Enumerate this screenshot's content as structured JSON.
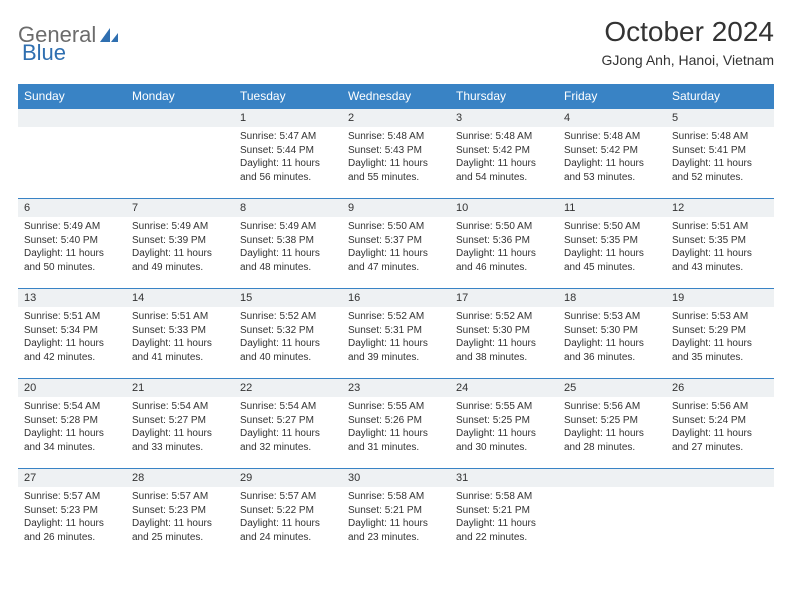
{
  "colors": {
    "header_bg": "#3983c5",
    "header_text": "#ffffff",
    "daynum_bg": "#eef1f3",
    "border": "#3983c5",
    "body_text": "#333333",
    "logo_gray": "#6c6c6c",
    "logo_blue": "#2f6fb0",
    "page_bg": "#ffffff"
  },
  "logo": {
    "part1": "General",
    "part2": "Blue"
  },
  "title": "October 2024",
  "location": "GJong Anh, Hanoi, Vietnam",
  "weekdays": [
    "Sunday",
    "Monday",
    "Tuesday",
    "Wednesday",
    "Thursday",
    "Friday",
    "Saturday"
  ],
  "font": {
    "title_size": 28,
    "location_size": 14,
    "th_size": 12,
    "cell_size": 10
  },
  "weeks": [
    [
      {
        "blank": true
      },
      {
        "blank": true
      },
      {
        "day": "1",
        "sunrise": "Sunrise: 5:47 AM",
        "sunset": "Sunset: 5:44 PM",
        "daylight": "Daylight: 11 hours and 56 minutes."
      },
      {
        "day": "2",
        "sunrise": "Sunrise: 5:48 AM",
        "sunset": "Sunset: 5:43 PM",
        "daylight": "Daylight: 11 hours and 55 minutes."
      },
      {
        "day": "3",
        "sunrise": "Sunrise: 5:48 AM",
        "sunset": "Sunset: 5:42 PM",
        "daylight": "Daylight: 11 hours and 54 minutes."
      },
      {
        "day": "4",
        "sunrise": "Sunrise: 5:48 AM",
        "sunset": "Sunset: 5:42 PM",
        "daylight": "Daylight: 11 hours and 53 minutes."
      },
      {
        "day": "5",
        "sunrise": "Sunrise: 5:48 AM",
        "sunset": "Sunset: 5:41 PM",
        "daylight": "Daylight: 11 hours and 52 minutes."
      }
    ],
    [
      {
        "day": "6",
        "sunrise": "Sunrise: 5:49 AM",
        "sunset": "Sunset: 5:40 PM",
        "daylight": "Daylight: 11 hours and 50 minutes."
      },
      {
        "day": "7",
        "sunrise": "Sunrise: 5:49 AM",
        "sunset": "Sunset: 5:39 PM",
        "daylight": "Daylight: 11 hours and 49 minutes."
      },
      {
        "day": "8",
        "sunrise": "Sunrise: 5:49 AM",
        "sunset": "Sunset: 5:38 PM",
        "daylight": "Daylight: 11 hours and 48 minutes."
      },
      {
        "day": "9",
        "sunrise": "Sunrise: 5:50 AM",
        "sunset": "Sunset: 5:37 PM",
        "daylight": "Daylight: 11 hours and 47 minutes."
      },
      {
        "day": "10",
        "sunrise": "Sunrise: 5:50 AM",
        "sunset": "Sunset: 5:36 PM",
        "daylight": "Daylight: 11 hours and 46 minutes."
      },
      {
        "day": "11",
        "sunrise": "Sunrise: 5:50 AM",
        "sunset": "Sunset: 5:35 PM",
        "daylight": "Daylight: 11 hours and 45 minutes."
      },
      {
        "day": "12",
        "sunrise": "Sunrise: 5:51 AM",
        "sunset": "Sunset: 5:35 PM",
        "daylight": "Daylight: 11 hours and 43 minutes."
      }
    ],
    [
      {
        "day": "13",
        "sunrise": "Sunrise: 5:51 AM",
        "sunset": "Sunset: 5:34 PM",
        "daylight": "Daylight: 11 hours and 42 minutes."
      },
      {
        "day": "14",
        "sunrise": "Sunrise: 5:51 AM",
        "sunset": "Sunset: 5:33 PM",
        "daylight": "Daylight: 11 hours and 41 minutes."
      },
      {
        "day": "15",
        "sunrise": "Sunrise: 5:52 AM",
        "sunset": "Sunset: 5:32 PM",
        "daylight": "Daylight: 11 hours and 40 minutes."
      },
      {
        "day": "16",
        "sunrise": "Sunrise: 5:52 AM",
        "sunset": "Sunset: 5:31 PM",
        "daylight": "Daylight: 11 hours and 39 minutes."
      },
      {
        "day": "17",
        "sunrise": "Sunrise: 5:52 AM",
        "sunset": "Sunset: 5:30 PM",
        "daylight": "Daylight: 11 hours and 38 minutes."
      },
      {
        "day": "18",
        "sunrise": "Sunrise: 5:53 AM",
        "sunset": "Sunset: 5:30 PM",
        "daylight": "Daylight: 11 hours and 36 minutes."
      },
      {
        "day": "19",
        "sunrise": "Sunrise: 5:53 AM",
        "sunset": "Sunset: 5:29 PM",
        "daylight": "Daylight: 11 hours and 35 minutes."
      }
    ],
    [
      {
        "day": "20",
        "sunrise": "Sunrise: 5:54 AM",
        "sunset": "Sunset: 5:28 PM",
        "daylight": "Daylight: 11 hours and 34 minutes."
      },
      {
        "day": "21",
        "sunrise": "Sunrise: 5:54 AM",
        "sunset": "Sunset: 5:27 PM",
        "daylight": "Daylight: 11 hours and 33 minutes."
      },
      {
        "day": "22",
        "sunrise": "Sunrise: 5:54 AM",
        "sunset": "Sunset: 5:27 PM",
        "daylight": "Daylight: 11 hours and 32 minutes."
      },
      {
        "day": "23",
        "sunrise": "Sunrise: 5:55 AM",
        "sunset": "Sunset: 5:26 PM",
        "daylight": "Daylight: 11 hours and 31 minutes."
      },
      {
        "day": "24",
        "sunrise": "Sunrise: 5:55 AM",
        "sunset": "Sunset: 5:25 PM",
        "daylight": "Daylight: 11 hours and 30 minutes."
      },
      {
        "day": "25",
        "sunrise": "Sunrise: 5:56 AM",
        "sunset": "Sunset: 5:25 PM",
        "daylight": "Daylight: 11 hours and 28 minutes."
      },
      {
        "day": "26",
        "sunrise": "Sunrise: 5:56 AM",
        "sunset": "Sunset: 5:24 PM",
        "daylight": "Daylight: 11 hours and 27 minutes."
      }
    ],
    [
      {
        "day": "27",
        "sunrise": "Sunrise: 5:57 AM",
        "sunset": "Sunset: 5:23 PM",
        "daylight": "Daylight: 11 hours and 26 minutes."
      },
      {
        "day": "28",
        "sunrise": "Sunrise: 5:57 AM",
        "sunset": "Sunset: 5:23 PM",
        "daylight": "Daylight: 11 hours and 25 minutes."
      },
      {
        "day": "29",
        "sunrise": "Sunrise: 5:57 AM",
        "sunset": "Sunset: 5:22 PM",
        "daylight": "Daylight: 11 hours and 24 minutes."
      },
      {
        "day": "30",
        "sunrise": "Sunrise: 5:58 AM",
        "sunset": "Sunset: 5:21 PM",
        "daylight": "Daylight: 11 hours and 23 minutes."
      },
      {
        "day": "31",
        "sunrise": "Sunrise: 5:58 AM",
        "sunset": "Sunset: 5:21 PM",
        "daylight": "Daylight: 11 hours and 22 minutes."
      },
      {
        "blank": true
      },
      {
        "blank": true
      }
    ]
  ]
}
